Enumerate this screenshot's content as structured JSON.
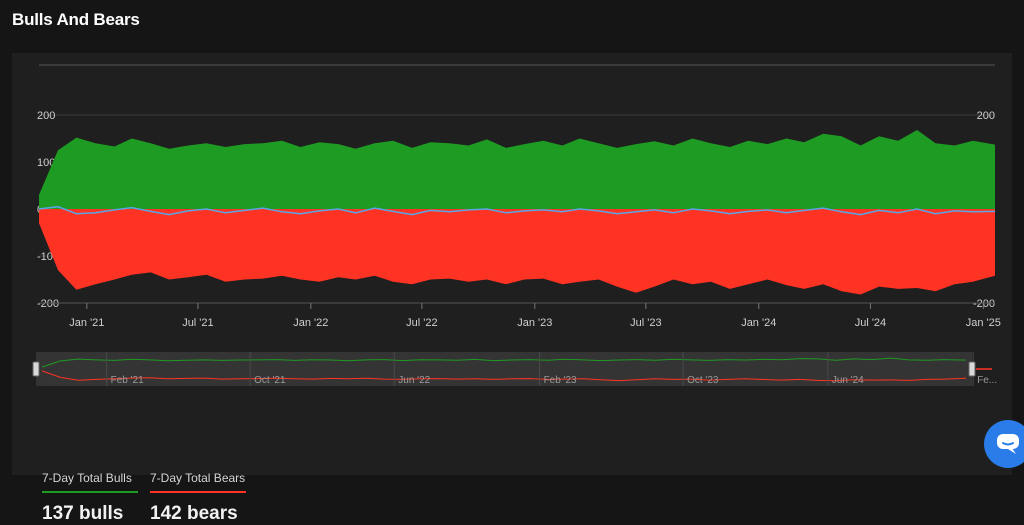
{
  "page": {
    "title": "Bulls And Bears"
  },
  "colors": {
    "bulls": "#1e9b22",
    "bears": "#ff3323",
    "net": "#5aa6e6",
    "navigator_bg": "#333333"
  },
  "stats": {
    "bulls": {
      "label": "7-Day Total Bulls",
      "value": "137 bulls",
      "color": "#1e9b22"
    },
    "bears": {
      "label": "7-Day Total Bears",
      "value": "142 bears",
      "color": "#ff3323"
    }
  },
  "chat": {
    "icon": "chat-bubble-icon"
  },
  "chart_data": {
    "type": "area",
    "title": "",
    "xlabel": "",
    "ylabel": "",
    "ylim": [
      -200,
      200
    ],
    "yticks": [
      200,
      100,
      0,
      -100,
      -200
    ],
    "ytick_labels": [
      "200",
      "100",
      "0",
      "-100",
      "-200"
    ],
    "grid": true,
    "x_start": "2020-10-15",
    "x_end": "2025-01-20",
    "xticks": [
      {
        "date": "2021-01-01",
        "label": "Jan '21"
      },
      {
        "date": "2021-07-01",
        "label": "Jul '21"
      },
      {
        "date": "2022-01-01",
        "label": "Jan '22"
      },
      {
        "date": "2022-07-01",
        "label": "Jul '22"
      },
      {
        "date": "2023-01-01",
        "label": "Jan '23"
      },
      {
        "date": "2023-07-01",
        "label": "Jul '23"
      },
      {
        "date": "2024-01-01",
        "label": "Jan '24"
      },
      {
        "date": "2024-07-01",
        "label": "Jul '24"
      },
      {
        "date": "2025-01-01",
        "label": "Jan '25"
      }
    ],
    "navigator_ticks": [
      {
        "date": "2021-02-01",
        "label": "Feb '21"
      },
      {
        "date": "2021-10-01",
        "label": "Oct '21"
      },
      {
        "date": "2022-06-01",
        "label": "Jun '22"
      },
      {
        "date": "2023-02-01",
        "label": "Feb '23"
      },
      {
        "date": "2023-10-01",
        "label": "Oct '23"
      },
      {
        "date": "2024-06-01",
        "label": "Jun '24"
      },
      {
        "date": "2025-02-01",
        "label": "Fe..."
      }
    ],
    "series": [
      {
        "name": "7-Day Total Bulls",
        "color": "#1e9b22",
        "points": [
          [
            "2020-10-15",
            30
          ],
          [
            "2020-11-15",
            125
          ],
          [
            "2020-12-15",
            152
          ],
          [
            "2021-01-15",
            140
          ],
          [
            "2021-02-15",
            133
          ],
          [
            "2021-03-15",
            150
          ],
          [
            "2021-04-15",
            140
          ],
          [
            "2021-05-15",
            128
          ],
          [
            "2021-06-15",
            135
          ],
          [
            "2021-07-15",
            140
          ],
          [
            "2021-08-15",
            132
          ],
          [
            "2021-09-15",
            138
          ],
          [
            "2021-10-15",
            140
          ],
          [
            "2021-11-15",
            145
          ],
          [
            "2021-12-15",
            132
          ],
          [
            "2022-01-15",
            142
          ],
          [
            "2022-02-15",
            138
          ],
          [
            "2022-03-15",
            128
          ],
          [
            "2022-04-15",
            140
          ],
          [
            "2022-05-15",
            145
          ],
          [
            "2022-06-15",
            130
          ],
          [
            "2022-07-15",
            142
          ],
          [
            "2022-08-15",
            140
          ],
          [
            "2022-09-15",
            135
          ],
          [
            "2022-10-15",
            148
          ],
          [
            "2022-11-15",
            130
          ],
          [
            "2022-12-15",
            138
          ],
          [
            "2023-01-15",
            145
          ],
          [
            "2023-02-15",
            135
          ],
          [
            "2023-03-15",
            150
          ],
          [
            "2023-04-15",
            140
          ],
          [
            "2023-05-15",
            130
          ],
          [
            "2023-06-15",
            138
          ],
          [
            "2023-07-15",
            144
          ],
          [
            "2023-08-15",
            135
          ],
          [
            "2023-09-15",
            150
          ],
          [
            "2023-10-15",
            140
          ],
          [
            "2023-11-15",
            132
          ],
          [
            "2023-12-15",
            145
          ],
          [
            "2024-01-15",
            138
          ],
          [
            "2024-02-15",
            150
          ],
          [
            "2024-03-15",
            142
          ],
          [
            "2024-04-15",
            160
          ],
          [
            "2024-05-15",
            155
          ],
          [
            "2024-06-15",
            135
          ],
          [
            "2024-07-15",
            155
          ],
          [
            "2024-08-15",
            145
          ],
          [
            "2024-09-15",
            168
          ],
          [
            "2024-10-15",
            140
          ],
          [
            "2024-11-15",
            135
          ],
          [
            "2024-12-15",
            145
          ],
          [
            "2025-01-20",
            137
          ]
        ]
      },
      {
        "name": "7-Day Total Bears",
        "color": "#ff3323",
        "points": [
          [
            "2020-10-15",
            -30
          ],
          [
            "2020-11-15",
            -130
          ],
          [
            "2020-12-15",
            -172
          ],
          [
            "2021-01-15",
            -160
          ],
          [
            "2021-02-15",
            -150
          ],
          [
            "2021-03-15",
            -140
          ],
          [
            "2021-04-15",
            -135
          ],
          [
            "2021-05-15",
            -150
          ],
          [
            "2021-06-15",
            -145
          ],
          [
            "2021-07-15",
            -140
          ],
          [
            "2021-08-15",
            -155
          ],
          [
            "2021-09-15",
            -150
          ],
          [
            "2021-10-15",
            -148
          ],
          [
            "2021-11-15",
            -142
          ],
          [
            "2021-12-15",
            -150
          ],
          [
            "2022-01-15",
            -155
          ],
          [
            "2022-02-15",
            -145
          ],
          [
            "2022-03-15",
            -150
          ],
          [
            "2022-04-15",
            -142
          ],
          [
            "2022-05-15",
            -155
          ],
          [
            "2022-06-15",
            -160
          ],
          [
            "2022-07-15",
            -150
          ],
          [
            "2022-08-15",
            -148
          ],
          [
            "2022-09-15",
            -155
          ],
          [
            "2022-10-15",
            -150
          ],
          [
            "2022-11-15",
            -160
          ],
          [
            "2022-12-15",
            -150
          ],
          [
            "2023-01-15",
            -148
          ],
          [
            "2023-02-15",
            -160
          ],
          [
            "2023-03-15",
            -155
          ],
          [
            "2023-04-15",
            -150
          ],
          [
            "2023-05-15",
            -165
          ],
          [
            "2023-06-15",
            -178
          ],
          [
            "2023-07-15",
            -165
          ],
          [
            "2023-08-15",
            -150
          ],
          [
            "2023-09-15",
            -160
          ],
          [
            "2023-10-15",
            -155
          ],
          [
            "2023-11-15",
            -170
          ],
          [
            "2023-12-15",
            -160
          ],
          [
            "2024-01-15",
            -150
          ],
          [
            "2024-02-15",
            -162
          ],
          [
            "2024-03-15",
            -170
          ],
          [
            "2024-04-15",
            -160
          ],
          [
            "2024-05-15",
            -175
          ],
          [
            "2024-06-15",
            -182
          ],
          [
            "2024-07-15",
            -165
          ],
          [
            "2024-08-15",
            -170
          ],
          [
            "2024-09-15",
            -168
          ],
          [
            "2024-10-15",
            -175
          ],
          [
            "2024-11-15",
            -160
          ],
          [
            "2024-12-15",
            -155
          ],
          [
            "2025-01-20",
            -142
          ]
        ]
      },
      {
        "name": "Net",
        "color": "#5aa6e6",
        "points": [
          [
            "2020-10-15",
            0
          ],
          [
            "2020-11-15",
            5
          ],
          [
            "2020-12-15",
            -10
          ],
          [
            "2021-01-15",
            -8
          ],
          [
            "2021-02-15",
            -2
          ],
          [
            "2021-03-15",
            3
          ],
          [
            "2021-04-15",
            -5
          ],
          [
            "2021-05-15",
            -12
          ],
          [
            "2021-06-15",
            -4
          ],
          [
            "2021-07-15",
            0
          ],
          [
            "2021-08-15",
            -8
          ],
          [
            "2021-09-15",
            -3
          ],
          [
            "2021-10-15",
            2
          ],
          [
            "2021-11-15",
            -6
          ],
          [
            "2021-12-15",
            -10
          ],
          [
            "2022-01-15",
            -4
          ],
          [
            "2022-02-15",
            0
          ],
          [
            "2022-03-15",
            -8
          ],
          [
            "2022-04-15",
            2
          ],
          [
            "2022-05-15",
            -5
          ],
          [
            "2022-06-15",
            -12
          ],
          [
            "2022-07-15",
            -3
          ],
          [
            "2022-08-15",
            -6
          ],
          [
            "2022-09-15",
            -2
          ],
          [
            "2022-10-15",
            0
          ],
          [
            "2022-11-15",
            -8
          ],
          [
            "2022-12-15",
            -4
          ],
          [
            "2023-01-15",
            -2
          ],
          [
            "2023-02-15",
            -6
          ],
          [
            "2023-03-15",
            0
          ],
          [
            "2023-04-15",
            -4
          ],
          [
            "2023-05-15",
            -10
          ],
          [
            "2023-06-15",
            -6
          ],
          [
            "2023-07-15",
            -2
          ],
          [
            "2023-08-15",
            -8
          ],
          [
            "2023-09-15",
            0
          ],
          [
            "2023-10-15",
            -4
          ],
          [
            "2023-11-15",
            -10
          ],
          [
            "2023-12-15",
            -5
          ],
          [
            "2024-01-15",
            -2
          ],
          [
            "2024-02-15",
            -8
          ],
          [
            "2024-03-15",
            -3
          ],
          [
            "2024-04-15",
            2
          ],
          [
            "2024-05-15",
            -6
          ],
          [
            "2024-06-15",
            -12
          ],
          [
            "2024-07-15",
            -3
          ],
          [
            "2024-08-15",
            -8
          ],
          [
            "2024-09-15",
            0
          ],
          [
            "2024-10-15",
            -10
          ],
          [
            "2024-11-15",
            -4
          ],
          [
            "2024-12-15",
            -6
          ],
          [
            "2025-01-20",
            -5
          ]
        ]
      }
    ]
  }
}
